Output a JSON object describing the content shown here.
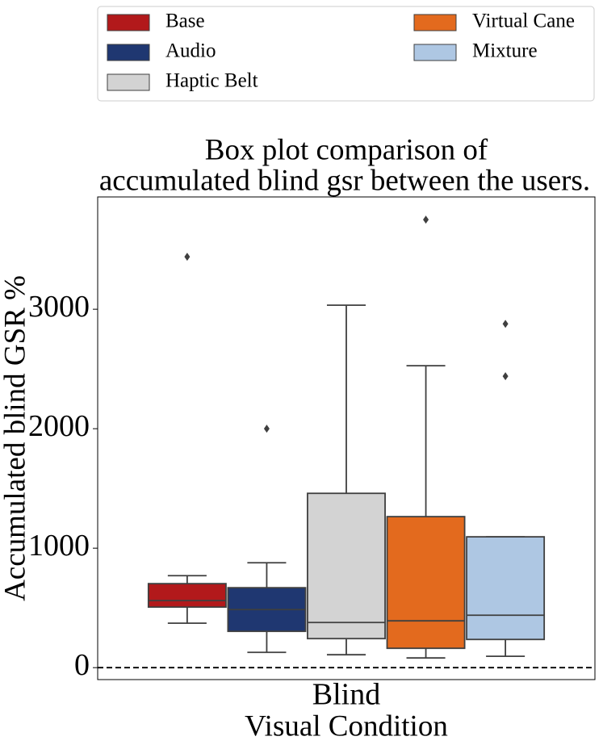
{
  "chart_data": {
    "type": "box",
    "title": [
      "Box plot comparison of",
      "accumulated blind gsr between the users."
    ],
    "xlabel": "Visual Condition",
    "ylabel": "Accumulated blind GSR %",
    "categories": [
      "Blind"
    ],
    "ylim": [
      -100,
      3940
    ],
    "yticks": [
      0,
      1000,
      2000,
      3000
    ],
    "reference_line": 0,
    "legend": "top",
    "series": [
      {
        "name": "Base",
        "color": "#b2191b",
        "whislo": 372,
        "q1": 507,
        "med": 561,
        "q3": 703,
        "whishi": 770,
        "fliers": [
          3439
        ]
      },
      {
        "name": "Audio",
        "color": "#1f3771",
        "whislo": 128,
        "q1": 304,
        "med": 486,
        "q3": 669,
        "whishi": 878,
        "fliers": [
          2000
        ]
      },
      {
        "name": "Haptic Belt",
        "color": "#d3d3d3",
        "whislo": 108,
        "q1": 243,
        "med": 378,
        "q3": 1459,
        "whishi": 3034,
        "fliers": []
      },
      {
        "name": "Virtual Cane",
        "color": "#e36a1e",
        "whislo": 81,
        "q1": 162,
        "med": 392,
        "q3": 1264,
        "whishi": 2527,
        "fliers": [
          3750
        ]
      },
      {
        "name": "Mixture",
        "color": "#aec7e3",
        "whislo": 95,
        "q1": 236,
        "med": 439,
        "q3": 1095,
        "whishi": 1095,
        "fliers": [
          2439,
          2878
        ]
      }
    ]
  }
}
